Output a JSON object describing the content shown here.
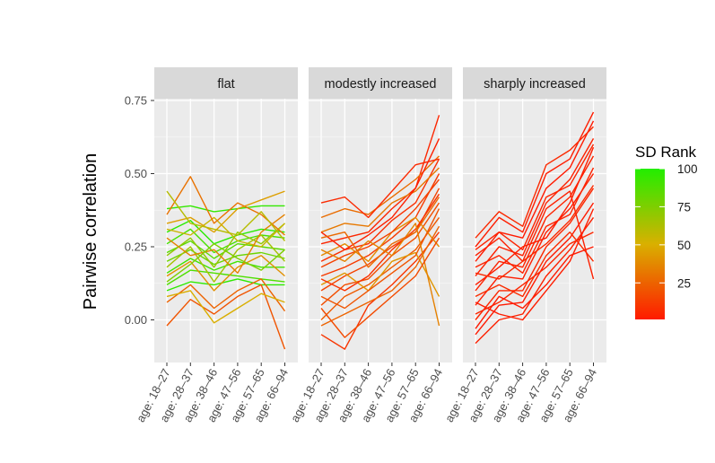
{
  "chart_data": {
    "type": "line",
    "title": "",
    "xlabel": "",
    "ylabel": "Pairwise correlation",
    "ylim": [
      -0.11,
      0.76
    ],
    "y_ticks": [
      "0.00",
      "0.25",
      "0.50",
      "0.75"
    ],
    "y_tick_values": [
      0,
      0.25,
      0.5,
      0.75
    ],
    "categories": [
      "age: 18–27",
      "age: 28–37",
      "age: 38–46",
      "age: 47–56",
      "age: 57–65",
      "age: 66–94"
    ],
    "grid": true,
    "legend": {
      "title": "SD Rank",
      "placement": "right",
      "type": "colorbar",
      "range": [
        1,
        100
      ],
      "ticks": [
        "25",
        "50",
        "75",
        "100"
      ],
      "tick_values": [
        25,
        50,
        75,
        100
      ],
      "low_color": "#ff1a00",
      "mid_color": "#d9b000",
      "high_color": "#22ee00"
    },
    "panels": [
      {
        "name": "flat",
        "series": [
          {
            "sd_rank": 95,
            "values": [
              0.38,
              0.39,
              0.37,
              0.38,
              0.39,
              0.39
            ]
          },
          {
            "sd_rank": 98,
            "values": [
              0.3,
              0.34,
              0.26,
              0.29,
              0.31,
              0.3
            ]
          },
          {
            "sd_rank": 90,
            "values": [
              0.26,
              0.31,
              0.23,
              0.27,
              0.29,
              0.28
            ]
          },
          {
            "sd_rank": 85,
            "values": [
              0.23,
              0.27,
              0.21,
              0.26,
              0.25,
              0.24
            ]
          },
          {
            "sd_rank": 80,
            "values": [
              0.2,
              0.24,
              0.19,
              0.22,
              0.23,
              0.21
            ]
          },
          {
            "sd_rank": 92,
            "values": [
              0.16,
              0.21,
              0.17,
              0.2,
              0.18,
              0.18
            ]
          },
          {
            "sd_rank": 88,
            "values": [
              0.12,
              0.17,
              0.16,
              0.15,
              0.14,
              0.13
            ]
          },
          {
            "sd_rank": 97,
            "values": [
              0.1,
              0.13,
              0.12,
              0.14,
              0.12,
              0.12
            ]
          },
          {
            "sd_rank": 70,
            "values": [
              0.22,
              0.28,
              0.18,
              0.3,
              0.26,
              0.33
            ]
          },
          {
            "sd_rank": 65,
            "values": [
              0.18,
              0.25,
              0.13,
              0.24,
              0.29,
              0.2
            ]
          },
          {
            "sd_rank": 55,
            "values": [
              0.31,
              0.29,
              0.35,
              0.27,
              0.25,
              0.33
            ]
          },
          {
            "sd_rank": 45,
            "values": [
              0.33,
              0.35,
              0.3,
              0.38,
              0.41,
              0.44
            ]
          },
          {
            "sd_rank": 40,
            "values": [
              0.15,
              0.2,
              0.1,
              0.18,
              0.22,
              0.15
            ]
          },
          {
            "sd_rank": 30,
            "values": [
              0.36,
              0.49,
              0.33,
              0.4,
              0.36,
              0.29
            ]
          },
          {
            "sd_rank": 25,
            "values": [
              0.06,
              0.12,
              0.04,
              0.1,
              0.14,
              0.03
            ]
          },
          {
            "sd_rank": 20,
            "values": [
              -0.02,
              0.07,
              0.02,
              0.08,
              0.12,
              -0.1
            ]
          },
          {
            "sd_rank": 35,
            "values": [
              0.28,
              0.22,
              0.24,
              0.16,
              0.3,
              0.36
            ]
          },
          {
            "sd_rank": 50,
            "values": [
              0.08,
              0.1,
              -0.01,
              0.04,
              0.09,
              0.06
            ]
          },
          {
            "sd_rank": 60,
            "values": [
              0.44,
              0.33,
              0.31,
              0.29,
              0.37,
              0.27
            ]
          },
          {
            "sd_rank": 75,
            "values": [
              0.13,
              0.19,
              0.26,
              0.21,
              0.17,
              0.24
            ]
          }
        ]
      },
      {
        "name": "modestly increased",
        "series": [
          {
            "sd_rank": 5,
            "values": [
              0.26,
              0.28,
              0.3,
              0.38,
              0.45,
              0.7
            ]
          },
          {
            "sd_rank": 8,
            "values": [
              0.2,
              0.24,
              0.26,
              0.34,
              0.4,
              0.55
            ]
          },
          {
            "sd_rank": 12,
            "values": [
              0.15,
              0.18,
              0.22,
              0.28,
              0.35,
              0.5
            ]
          },
          {
            "sd_rank": 15,
            "values": [
              0.1,
              0.15,
              0.19,
              0.25,
              0.3,
              0.45
            ]
          },
          {
            "sd_rank": 18,
            "values": [
              0.05,
              0.12,
              0.14,
              0.22,
              0.28,
              0.4
            ]
          },
          {
            "sd_rank": 22,
            "values": [
              0.0,
              0.08,
              0.12,
              0.18,
              0.24,
              0.35
            ]
          },
          {
            "sd_rank": 10,
            "values": [
              -0.05,
              -0.1,
              0.05,
              0.12,
              0.2,
              0.3
            ]
          },
          {
            "sd_rank": 28,
            "values": [
              0.35,
              0.38,
              0.36,
              0.42,
              0.48,
              0.56
            ]
          },
          {
            "sd_rank": 32,
            "values": [
              0.3,
              0.33,
              0.32,
              0.4,
              0.44,
              0.52
            ]
          },
          {
            "sd_rank": 38,
            "values": [
              0.22,
              0.26,
              0.2,
              0.3,
              0.35,
              0.25
            ]
          },
          {
            "sd_rank": 42,
            "values": [
              0.12,
              0.16,
              0.1,
              0.2,
              0.23,
              0.08
            ]
          },
          {
            "sd_rank": 6,
            "values": [
              0.4,
              0.42,
              0.35,
              0.44,
              0.53,
              0.55
            ]
          },
          {
            "sd_rank": 14,
            "values": [
              0.18,
              0.22,
              0.25,
              0.3,
              0.38,
              0.48
            ]
          },
          {
            "sd_rank": 20,
            "values": [
              0.08,
              0.04,
              0.1,
              0.16,
              0.22,
              0.38
            ]
          },
          {
            "sd_rank": 25,
            "values": [
              -0.02,
              0.02,
              0.06,
              0.1,
              0.18,
              0.32
            ]
          },
          {
            "sd_rank": 3,
            "values": [
              0.3,
              0.24,
              0.29,
              0.35,
              0.45,
              0.62
            ]
          },
          {
            "sd_rank": 9,
            "values": [
              0.14,
              0.1,
              0.15,
              0.24,
              0.31,
              0.43
            ]
          },
          {
            "sd_rank": 35,
            "values": [
              0.24,
              0.2,
              0.27,
              0.22,
              0.33,
              -0.02
            ]
          },
          {
            "sd_rank": 17,
            "values": [
              0.04,
              -0.06,
              0.01,
              0.08,
              0.15,
              0.28
            ]
          },
          {
            "sd_rank": 27,
            "values": [
              0.28,
              0.3,
              0.18,
              0.26,
              0.3,
              0.42
            ]
          }
        ]
      },
      {
        "name": "sharply increased",
        "series": [
          {
            "sd_rank": 2,
            "values": [
              0.25,
              0.35,
              0.3,
              0.5,
              0.55,
              0.71
            ]
          },
          {
            "sd_rank": 1,
            "values": [
              0.2,
              0.3,
              0.28,
              0.45,
              0.52,
              0.68
            ]
          },
          {
            "sd_rank": 3,
            "values": [
              0.15,
              0.25,
              0.22,
              0.4,
              0.48,
              0.62
            ]
          },
          {
            "sd_rank": 4,
            "values": [
              0.1,
              0.2,
              0.18,
              0.35,
              0.42,
              0.56
            ]
          },
          {
            "sd_rank": 2,
            "values": [
              0.05,
              0.15,
              0.14,
              0.3,
              0.38,
              0.5
            ]
          },
          {
            "sd_rank": 5,
            "values": [
              0.0,
              0.1,
              0.1,
              0.25,
              0.33,
              0.45
            ]
          },
          {
            "sd_rank": 1,
            "values": [
              -0.05,
              0.05,
              0.06,
              0.2,
              0.28,
              0.4
            ]
          },
          {
            "sd_rank": 3,
            "values": [
              -0.08,
              0.0,
              0.02,
              0.15,
              0.24,
              0.35
            ]
          },
          {
            "sd_rank": 6,
            "values": [
              0.28,
              0.37,
              0.32,
              0.53,
              0.58,
              0.66
            ]
          },
          {
            "sd_rank": 4,
            "values": [
              0.18,
              0.22,
              0.16,
              0.32,
              0.36,
              0.52
            ]
          },
          {
            "sd_rank": 7,
            "values": [
              0.08,
              0.12,
              0.08,
              0.22,
              0.3,
              0.2
            ]
          },
          {
            "sd_rank": 2,
            "values": [
              0.12,
              0.18,
              0.25,
              0.28,
              0.4,
              0.59
            ]
          },
          {
            "sd_rank": 5,
            "values": [
              0.02,
              0.06,
              0.12,
              0.18,
              0.26,
              0.3
            ]
          },
          {
            "sd_rank": 3,
            "values": [
              0.22,
              0.28,
              0.2,
              0.38,
              0.44,
              0.14
            ]
          },
          {
            "sd_rank": 1,
            "values": [
              -0.03,
              0.08,
              0.04,
              0.12,
              0.22,
              0.25
            ]
          },
          {
            "sd_rank": 6,
            "values": [
              0.16,
              0.14,
              0.2,
              0.26,
              0.34,
              0.46
            ]
          },
          {
            "sd_rank": 2,
            "values": [
              0.06,
              0.02,
              0.0,
              0.1,
              0.2,
              0.38
            ]
          },
          {
            "sd_rank": 4,
            "values": [
              0.24,
              0.3,
              0.24,
              0.42,
              0.46,
              0.6
            ]
          }
        ]
      }
    ]
  }
}
